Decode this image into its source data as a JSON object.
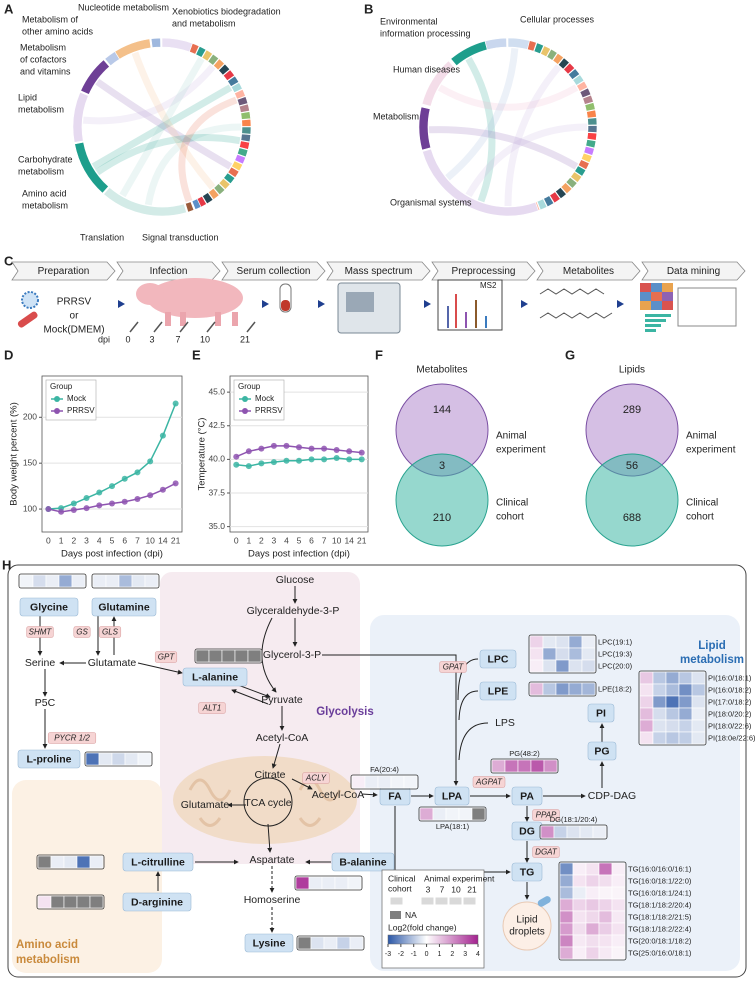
{
  "panel_labels": [
    "A",
    "B",
    "C",
    "D",
    "E",
    "F",
    "G",
    "H"
  ],
  "panel_a": {
    "labels": [
      [
        "Nucleotide metabolism"
      ],
      [
        "Metabolism of",
        "other amino acids"
      ],
      [
        "Xenobiotics biodegradation",
        "and metabolism"
      ],
      [
        "Metabolism",
        "of cofactors",
        "and vitamins"
      ],
      [
        "Lipid",
        "metabolism"
      ],
      [
        "Carbohydrate",
        "metabolism"
      ],
      [
        "Amino acid",
        "metabolism"
      ],
      [
        "Translation"
      ],
      [
        "Signal transduction"
      ]
    ]
  },
  "panel_b": {
    "labels": [
      [
        "Environmental",
        "information processing"
      ],
      [
        "Cellular processes"
      ],
      [
        "Human diseases"
      ],
      [
        "Metabolism"
      ],
      [
        "Organismal systems"
      ]
    ]
  },
  "panel_c": {
    "steps": [
      "Preparation",
      "Infection",
      "Serum collection",
      "Mass spectrum",
      "Preprocessing",
      "Metabolites",
      "Data mining"
    ],
    "inputs": [
      "PRRSV",
      "or",
      "Mock(DMEM)"
    ],
    "dpi_label": "dpi",
    "dpi": [
      0,
      3,
      7,
      10,
      21
    ],
    "ms_label": "MS2"
  },
  "chart_data": [
    {
      "type": "line",
      "y_label": "Body weight percent (%)",
      "x_label": "Days post infection (dpi)",
      "legend_title": "Group",
      "categories": [
        "0",
        "1",
        "2",
        "3",
        "4",
        "5",
        "6",
        "7",
        "10",
        "14",
        "21"
      ],
      "series": [
        {
          "name": "Mock",
          "color": "#3bb5a3",
          "values": [
            100,
            101,
            106,
            112,
            118,
            125,
            133,
            140,
            152,
            180,
            215
          ]
        },
        {
          "name": "PRRSV",
          "color": "#8e54b0",
          "values": [
            100,
            97,
            99,
            101,
            104,
            106,
            108,
            111,
            115,
            121,
            128
          ]
        }
      ],
      "ylim": [
        75,
        245
      ],
      "yticks": [
        100,
        150,
        200
      ],
      "grid": true
    },
    {
      "type": "line",
      "y_label": "Temperature (°C)",
      "x_label": "Days post infection (dpi)",
      "legend_title": "Group",
      "categories": [
        "0",
        "1",
        "2",
        "3",
        "4",
        "5",
        "6",
        "7",
        "10",
        "14",
        "21"
      ],
      "series": [
        {
          "name": "Mock",
          "color": "#3bb5a3",
          "values": [
            39.6,
            39.5,
            39.7,
            39.8,
            39.9,
            39.9,
            40.0,
            40.0,
            40.1,
            40.0,
            40.0
          ]
        },
        {
          "name": "PRRSV",
          "color": "#8e54b0",
          "values": [
            40.2,
            40.6,
            40.8,
            41.0,
            41.0,
            40.9,
            40.8,
            40.8,
            40.7,
            40.6,
            40.5
          ]
        }
      ],
      "ylim": [
        34.6,
        46.2
      ],
      "yticks": [
        {
          "value": 35,
          "label": "35.0"
        },
        {
          "value": 37.5,
          "label": "37.5"
        },
        {
          "value": 40,
          "label": "40.0"
        },
        {
          "value": 42.5,
          "label": "42.5"
        },
        {
          "value": 45,
          "label": "45.0"
        }
      ],
      "grid": true
    }
  ],
  "venn": [
    {
      "title": "Metabolites",
      "top": 144,
      "overlap": 3,
      "bottom": 210,
      "top_label": [
        "Animal",
        "experiment"
      ],
      "bottom_label": [
        "Clinical",
        "cohort"
      ]
    },
    {
      "title": "Lipids",
      "top": 289,
      "overlap": 56,
      "bottom": 688,
      "top_label": [
        "Animal",
        "experiment"
      ],
      "bottom_label": [
        "Clinical",
        "cohort"
      ]
    }
  ],
  "pathway": {
    "boxes": [
      "Glycine",
      "Glutamine",
      "L-alanine",
      "L-proline",
      "L-citrulline",
      "D-arginine",
      "B-alanine",
      "Lysine",
      "FA",
      "LPA",
      "PA",
      "DG",
      "TG",
      "LPC",
      "LPE",
      "PI",
      "PG"
    ],
    "enzymes": [
      "SHMT",
      "GS",
      "GLS",
      "GPT",
      "ALT1",
      "PYCR 1/2",
      "ACLY",
      "GPAT",
      "AGPAT",
      "PPAP",
      "DGAT"
    ],
    "metabolites": [
      "Glucose",
      "Glyceraldehyde-3-P",
      "Glycerol-3-P",
      "Serine",
      "Glutamate",
      "P5C",
      "Pyruvate",
      "Acetyl-CoA",
      "Citrate",
      "Glutamate",
      "TCA cycle",
      "Acetyl-CoA",
      "Aspartate",
      "Homoserine",
      "LPS",
      "CDP-DAG"
    ],
    "droplets": [
      "Lipid",
      "droplets"
    ],
    "regions": [
      [
        "Glycolysis"
      ],
      [
        "Lipid",
        "metabolism"
      ],
      [
        "Amino acid",
        "metabolism"
      ]
    ],
    "heatmaps": [
      {
        "rows": [
          {
            "values": [
              -0.2,
              -0.6,
              -0.3,
              -1.5,
              -0.3
            ]
          }
        ]
      },
      {
        "rows": [
          {
            "values": [
              -0.3,
              -0.3,
              -1.2,
              -0.4,
              -0.3
            ]
          }
        ]
      },
      {
        "rows": [
          {
            "values": [
              null,
              null,
              null,
              null,
              null
            ]
          }
        ]
      },
      {
        "rows": [
          {
            "values": [
              -2.5,
              -0.4,
              -0.7,
              -0.4,
              -0.2
            ]
          }
        ]
      },
      {
        "rows": [
          {
            "values": [
              null,
              -0.3,
              -0.4,
              -2.5,
              -0.3
            ]
          }
        ]
      },
      {
        "rows": [
          {
            "values": [
              0.5,
              null,
              null,
              null,
              null
            ]
          }
        ]
      },
      {
        "rows": [
          {
            "values": [
              3.5,
              -0.3,
              -0.3,
              -0.3,
              -0.2
            ]
          }
        ]
      },
      {
        "rows": [
          {
            "values": [
              null,
              -0.5,
              -0.3,
              -0.8,
              -0.3
            ]
          }
        ]
      },
      {
        "rows": [
          {
            "label": "FA(20:4)",
            "values": [
              0.3,
              -0.3,
              -0.3,
              -0.2,
              -0.2
            ]
          }
        ]
      },
      {
        "rows": [
          {
            "label": "LPA(18:1)",
            "values": [
              1.5,
              -0.3,
              -0.2,
              -0.2,
              null
            ]
          }
        ]
      },
      {
        "rows": [
          {
            "label": "DG(18:1/20:4)",
            "values": [
              2,
              -0.8,
              -0.5,
              -0.4,
              -0.3
            ]
          }
        ]
      },
      {
        "rows": [
          {
            "label": "PG(48:2)",
            "values": [
              1.5,
              2.5,
              2.5,
              3,
              2
            ]
          }
        ]
      },
      {
        "rows": [
          {
            "label": "LPC(19:1)",
            "values": [
              0.8,
              -0.4,
              -0.5,
              -1.5,
              -0.3
            ]
          },
          {
            "label": "LPC(19:3)",
            "values": [
              0.5,
              -1.5,
              -0.6,
              -1.2,
              -0.4
            ]
          },
          {
            "label": "LPC(20:0)",
            "values": [
              0.3,
              -0.5,
              -1.8,
              -0.5,
              -0.6
            ]
          }
        ]
      },
      {
        "rows": [
          {
            "label": "LPE(18:2)",
            "values": [
              1.2,
              -1,
              -1.8,
              -1.5,
              -1.3
            ]
          }
        ]
      },
      {
        "rows": [
          {
            "label": "PI(16:0/18:1)",
            "values": [
              1,
              -1,
              -1.5,
              -1,
              -0.5
            ]
          },
          {
            "label": "PI(16:0/18:2)",
            "values": [
              0.5,
              -0.8,
              -1.2,
              -2,
              -1
            ]
          },
          {
            "label": "PI(17:0/18:2)",
            "values": [
              0.8,
              -1.8,
              -2.5,
              -1.8,
              -0.5
            ]
          },
          {
            "label": "PI(18:0/20:2)",
            "values": [
              1.2,
              -0.6,
              -1,
              -1.5,
              -0.3
            ]
          },
          {
            "label": "PI(18:0/22:6)",
            "values": [
              1.5,
              -0.5,
              -0.6,
              -0.8,
              -0.4
            ]
          },
          {
            "label": "PI(18:0e/22:6)",
            "values": [
              0.5,
              -0.8,
              -1,
              -0.9,
              -0.4
            ]
          }
        ]
      },
      {
        "rows": [
          {
            "label": "TG(16:0/16:0/16:1)",
            "values": [
              -2,
              0.3,
              0.5,
              2.5,
              0.3
            ]
          },
          {
            "label": "TG(16:0/18:1/22:0)",
            "values": [
              -1.5,
              0.5,
              0.8,
              0.6,
              0.3
            ]
          },
          {
            "label": "TG(16:0/18:1/24:1)",
            "values": [
              -1.2,
              -0.3,
              0.3,
              0.2,
              0.2
            ]
          },
          {
            "label": "TG(18:1/18:2/20:4)",
            "values": [
              1.5,
              0.8,
              1,
              0.8,
              0.5
            ]
          },
          {
            "label": "TG(18:1/18:2/21:5)",
            "values": [
              2,
              0.5,
              0.7,
              1.2,
              0.4
            ]
          },
          {
            "label": "TG(18:1/18:2/22:4)",
            "values": [
              1.8,
              0.6,
              1.5,
              0.9,
              0.5
            ]
          },
          {
            "label": "TG(20:0/18:1/18:2)",
            "values": [
              2.2,
              0.4,
              0.6,
              0.5,
              0.3
            ]
          },
          {
            "label": "TG(25:0/16:0/18:1)",
            "values": [
              1.5,
              0.3,
              0.8,
              0.4,
              0.2
            ]
          }
        ]
      }
    ],
    "legend": {
      "clinical": [
        "Clinical",
        "cohort"
      ],
      "animal": "Animal experiment",
      "timepoints": [
        3,
        7,
        10,
        21
      ],
      "na": "NA",
      "title": "Log2(fold change)",
      "min": -3,
      "max": 4,
      "ticks": [
        -3,
        -2,
        -1,
        0,
        1,
        2,
        3,
        4
      ],
      "colors": [
        "#2b57a7",
        "#ffffff",
        "#a3218f"
      ],
      "na_color": "#7f7f7f"
    }
  }
}
